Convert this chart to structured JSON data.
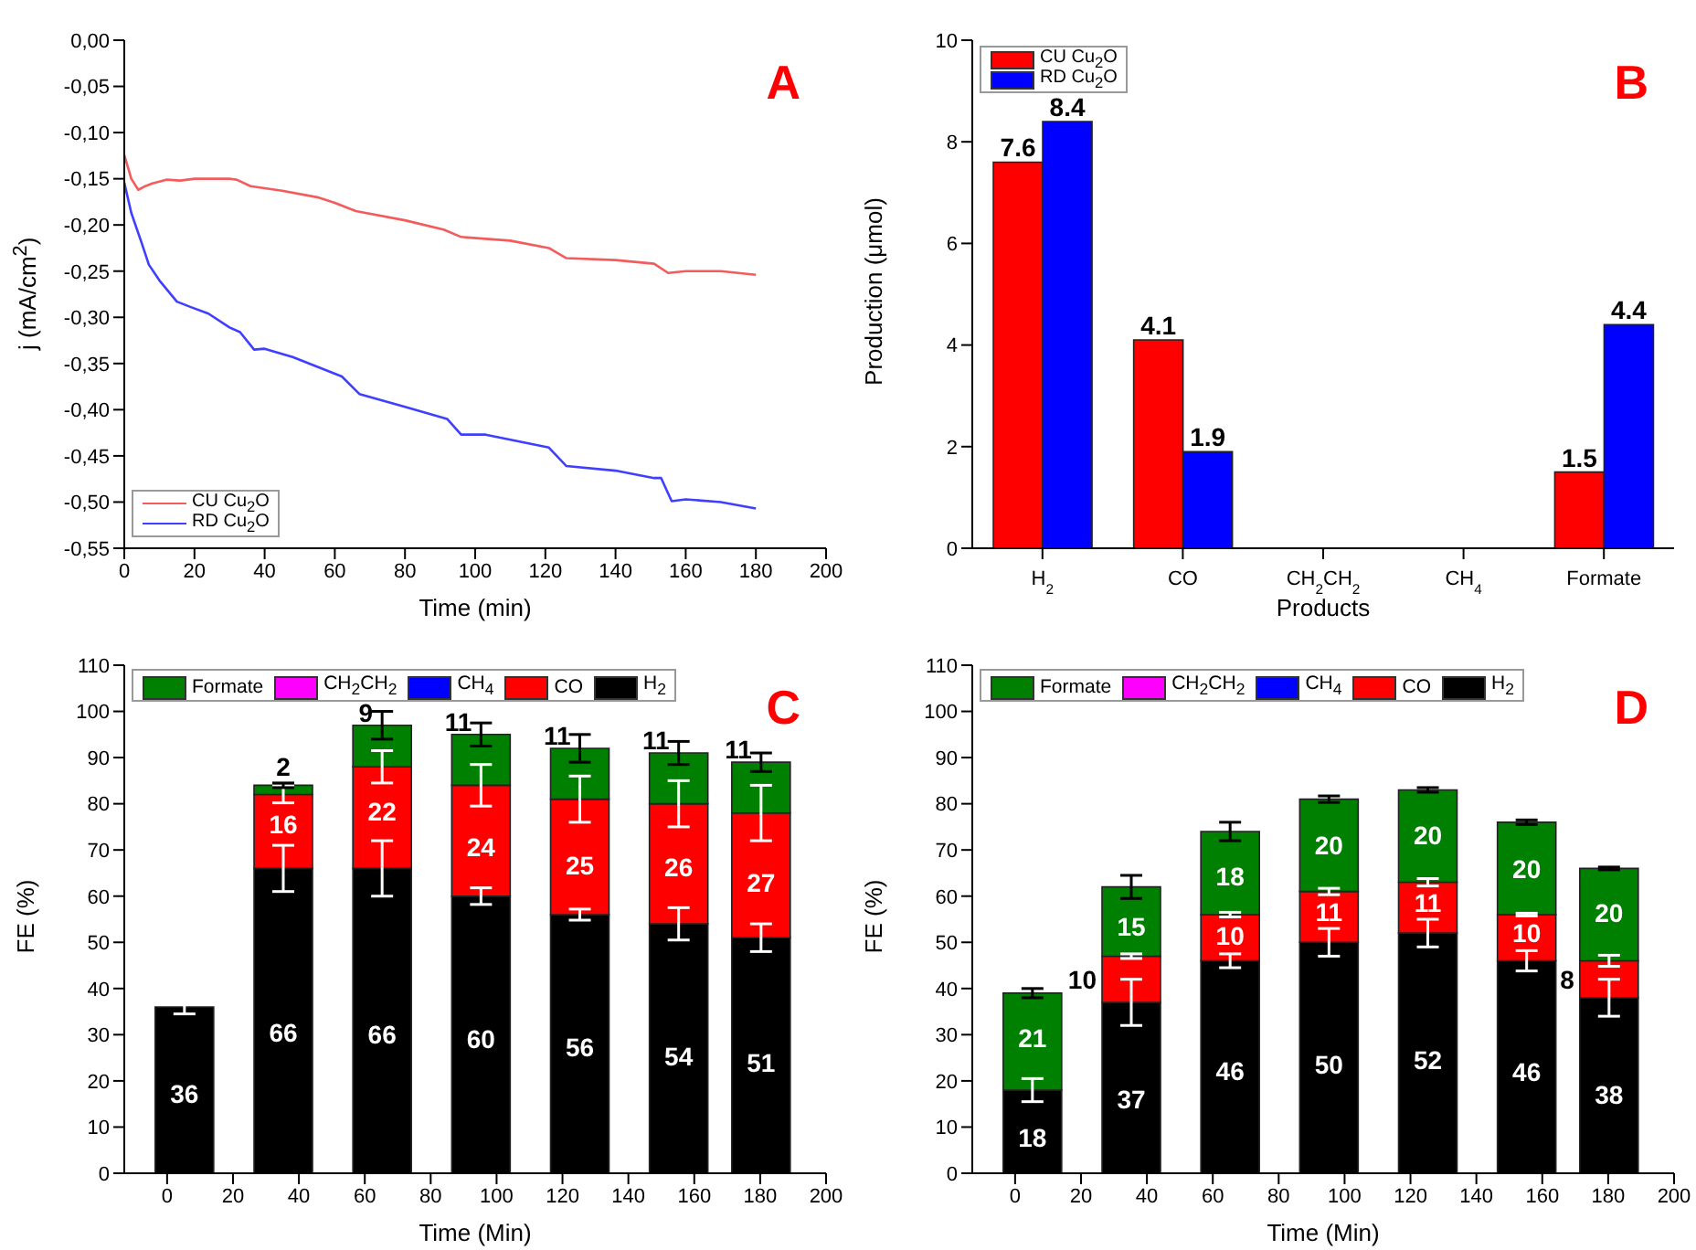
{
  "chart_data": [
    {
      "type": "line",
      "annotations": [
        "A"
      ],
      "xlabel": "Time (min)",
      "ylabel": "j (mA/cm$^{2}$)",
      "legend": "bottom left",
      "xlim": [
        0,
        200
      ],
      "xticks": [
        0,
        20,
        40,
        60,
        80,
        100,
        120,
        140,
        160,
        180,
        200
      ],
      "ylim": [
        -0.55,
        0
      ],
      "yticks": [
        {
          "value": 0,
          "label": "0,00"
        },
        {
          "value": -0.05,
          "label": "-0,05"
        },
        {
          "value": -0.1,
          "label": "-0,10"
        },
        {
          "value": -0.15,
          "label": "-0,15"
        },
        {
          "value": -0.2,
          "label": "-0,20"
        },
        {
          "value": -0.25,
          "label": "-0,25"
        },
        {
          "value": -0.3,
          "label": "-0,30"
        },
        {
          "value": -0.35,
          "label": "-0,35"
        },
        {
          "value": -0.4,
          "label": "-0,40"
        },
        {
          "value": -0.45,
          "label": "-0,45"
        },
        {
          "value": -0.5,
          "label": "-0,50"
        },
        {
          "value": -0.55,
          "label": "-0,55"
        }
      ],
      "series": [
        {
          "name": "CU Cu$_{2}$O",
          "color": "#f25c5c",
          "x": [
            0,
            2,
            4,
            6,
            8,
            12,
            16,
            20,
            30,
            32,
            36,
            45,
            55,
            60,
            66,
            80,
            91,
            96,
            110,
            121,
            126,
            140,
            151,
            155,
            160,
            170,
            180
          ],
          "values": [
            -0.124,
            -0.15,
            -0.162,
            -0.158,
            -0.155,
            -0.151,
            -0.152,
            -0.15,
            -0.15,
            -0.151,
            -0.158,
            -0.163,
            -0.17,
            -0.176,
            -0.185,
            -0.195,
            -0.205,
            -0.213,
            -0.217,
            -0.225,
            -0.236,
            -0.238,
            -0.242,
            -0.252,
            -0.25,
            -0.25,
            -0.254
          ]
        },
        {
          "name": "RD Cu$_{2}$O",
          "color": "#3f3fff",
          "x": [
            0,
            2,
            5,
            7,
            10,
            15,
            19,
            24,
            30,
            33,
            37,
            40,
            48,
            62,
            67,
            80,
            92,
            96,
            103,
            121,
            126,
            140,
            151,
            153,
            156,
            160,
            170,
            180
          ],
          "values": [
            -0.154,
            -0.187,
            -0.22,
            -0.243,
            -0.26,
            -0.283,
            -0.289,
            -0.296,
            -0.311,
            -0.316,
            -0.335,
            -0.334,
            -0.343,
            -0.364,
            -0.383,
            -0.397,
            -0.41,
            -0.427,
            -0.427,
            -0.441,
            -0.461,
            -0.466,
            -0.474,
            -0.474,
            -0.499,
            -0.497,
            -0.5,
            -0.507
          ]
        }
      ]
    },
    {
      "type": "bar",
      "annotations": [
        "B"
      ],
      "xlabel": "Products",
      "ylabel": "Production (μmol)",
      "legend": "top left",
      "data_labels": true,
      "categories": [
        "H$_{2}$",
        "CO",
        "CH$_{2}$CH$_{2}$",
        "CH$_{4}$",
        "Formate"
      ],
      "ylim": [
        0,
        10
      ],
      "yticks": [
        0,
        2,
        4,
        6,
        8,
        10
      ],
      "series": [
        {
          "name": "CU Cu$_{2}$O",
          "color": "#ff0000",
          "values": [
            7.6,
            4.1,
            null,
            null,
            1.5
          ]
        },
        {
          "name": "RD Cu$_{2}$O",
          "color": "#0000ff",
          "values": [
            8.4,
            1.9,
            null,
            null,
            4.4
          ]
        }
      ]
    },
    {
      "type": "bar",
      "stacked": true,
      "annotations": [
        "C"
      ],
      "xlabel": "Time (Min)",
      "ylabel": "FE (%)",
      "legend": "top",
      "data_labels": true,
      "x": [
        5,
        35,
        65,
        95,
        125,
        155,
        180
      ],
      "xlim": [
        -13,
        200
      ],
      "xticks": [
        0,
        20,
        40,
        60,
        80,
        100,
        120,
        140,
        160,
        180,
        200
      ],
      "ylim": [
        0,
        110
      ],
      "yticks": [
        0,
        10,
        20,
        30,
        40,
        50,
        60,
        70,
        80,
        90,
        100,
        110
      ],
      "series": [
        {
          "name": "H$_{2}$",
          "color": "#000000",
          "values": [
            36,
            66,
            66,
            60,
            56,
            54,
            51
          ],
          "errors": [
            1.5,
            5,
            6,
            1.8,
            1.2,
            3.5,
            3
          ]
        },
        {
          "name": "CO",
          "color": "#ff0000",
          "values": [
            null,
            16,
            22,
            24,
            25,
            26,
            27
          ],
          "errors": [
            null,
            1.8,
            3.5,
            4.5,
            5,
            5,
            6
          ]
        },
        {
          "name": "CH$_{4}$",
          "color": "#0000ff",
          "values": [
            null,
            null,
            null,
            null,
            null,
            null,
            null
          ]
        },
        {
          "name": "CH$_{2}$CH$_{2}$",
          "color": "#ff00ff",
          "values": [
            null,
            null,
            null,
            null,
            null,
            null,
            null
          ]
        },
        {
          "name": "Formate",
          "color": "#008000",
          "values": [
            null,
            2,
            9,
            11,
            11,
            11,
            11
          ],
          "errors": [
            null,
            0.5,
            3,
            2.5,
            3,
            2.5,
            2
          ]
        }
      ]
    },
    {
      "type": "bar",
      "stacked": true,
      "annotations": [
        "D"
      ],
      "xlabel": "Time (Min)",
      "ylabel": "FE (%)",
      "legend": "top",
      "data_labels": true,
      "x": [
        5,
        35,
        65,
        95,
        125,
        155,
        180
      ],
      "xlim": [
        -13,
        200
      ],
      "xticks": [
        0,
        20,
        40,
        60,
        80,
        100,
        120,
        140,
        160,
        180,
        200
      ],
      "ylim": [
        0,
        110
      ],
      "yticks": [
        0,
        10,
        20,
        30,
        40,
        50,
        60,
        70,
        80,
        90,
        100,
        110
      ],
      "series": [
        {
          "name": "H$_{2}$",
          "color": "#000000",
          "values": [
            18,
            37,
            46,
            50,
            52,
            46,
            38
          ],
          "errors": [
            2.5,
            5,
            1.5,
            3,
            3,
            2.2,
            4
          ]
        },
        {
          "name": "CO",
          "color": "#ff0000",
          "values": [
            null,
            10,
            10,
            11,
            11,
            10,
            8
          ],
          "errors": [
            null,
            0.5,
            0.5,
            0.7,
            0.8,
            0.3,
            1.2
          ]
        },
        {
          "name": "CH$_{4}$",
          "color": "#0000ff",
          "values": [
            null,
            null,
            null,
            null,
            null,
            null,
            null
          ]
        },
        {
          "name": "CH$_{2}$CH$_{2}$",
          "color": "#ff00ff",
          "values": [
            null,
            null,
            null,
            null,
            null,
            null,
            null
          ]
        },
        {
          "name": "Formate",
          "color": "#008000",
          "values": [
            21,
            15,
            18,
            20,
            20,
            20,
            20
          ],
          "errors": [
            1,
            2.5,
            2,
            0.7,
            0.5,
            0.5,
            0.3
          ]
        }
      ]
    }
  ]
}
